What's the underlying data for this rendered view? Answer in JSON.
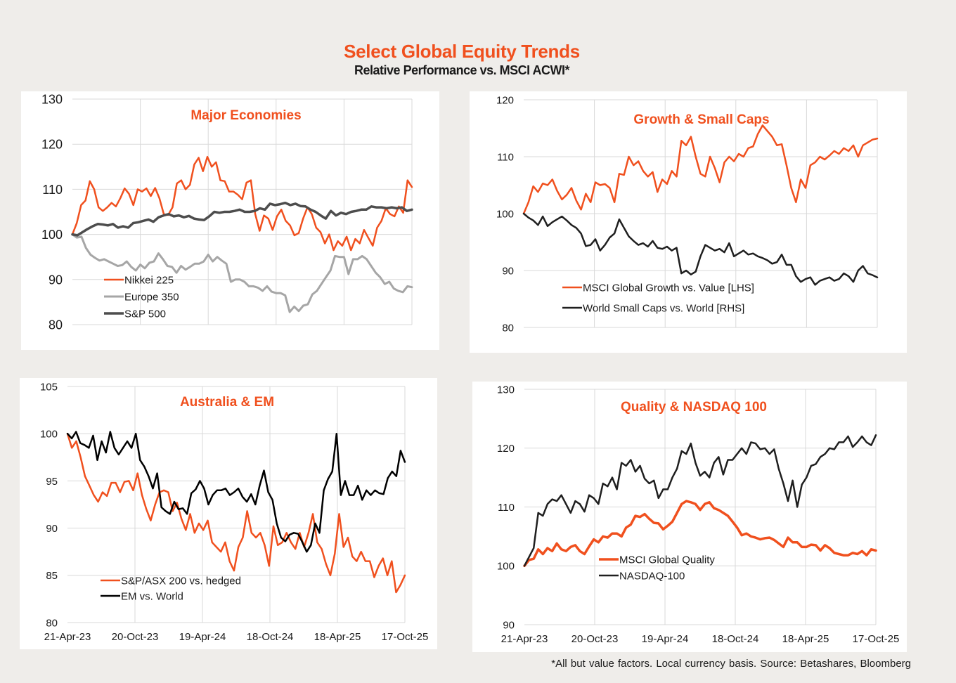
{
  "header": {
    "title": "Select Global Equity Trends",
    "subtitle": "Relative Performance vs. MSCI ACWI*"
  },
  "footnote": "*All but value factors. Local currency basis.  Source: Betashares, Bloomberg",
  "colors": {
    "accent": "#f0501e",
    "background": "#efedea",
    "panel": "#ffffff",
    "grid": "#d9d9d9",
    "text": "#1a1a1a"
  },
  "chart_data": [
    {
      "type": "line",
      "title": "Major Economies",
      "xlabel": "",
      "ylabel": "",
      "ylim": [
        80,
        130
      ],
      "yticks": [
        80,
        90,
        100,
        110,
        120,
        130
      ],
      "x_range": [
        "21-Apr-23",
        "17-Oct-25"
      ],
      "xticks": [],
      "x_gridlines": [
        "20-Oct-23",
        "19-Apr-24",
        "18-Oct-24",
        "18-Apr-25"
      ],
      "grid": true,
      "legend_position": "bottom-left",
      "series": [
        {
          "name": "Nikkei 225",
          "color": "#f0501e",
          "width": 2.5,
          "values": [
            100,
            102.5,
            106.5,
            107.5,
            111.8,
            110,
            106,
            105.2,
            106,
            107,
            106.2,
            108,
            110.2,
            109,
            106.5,
            110,
            109.5,
            110.2,
            108.5,
            110.3,
            108,
            104.5,
            104.3,
            106,
            111.3,
            112,
            110,
            111,
            115.5,
            117,
            114,
            117.2,
            115,
            116,
            112,
            111.8,
            109.5,
            109.5,
            108.8,
            107.8,
            111.5,
            112,
            104.5,
            100.8,
            104.2,
            103.5,
            101,
            104,
            105.5,
            103,
            102,
            99.8,
            100.3,
            103.5,
            106,
            104.5,
            101.5,
            100.5,
            98,
            100,
            96.5,
            98.5,
            97.5,
            99.5,
            96.5,
            99,
            98,
            101,
            99.2,
            97.5,
            101.5,
            103,
            105.8,
            104.5,
            104,
            106.2,
            104.8,
            112,
            110.5
          ]
        },
        {
          "name": "Europe 350",
          "color": "#a6a6a6",
          "width": 3,
          "values": [
            100,
            99.3,
            99.5,
            97,
            95.5,
            94.8,
            94.2,
            94.5,
            94,
            93.5,
            93,
            93.2,
            94,
            92.8,
            92,
            93.3,
            92.5,
            93.7,
            94,
            95.8,
            94.5,
            93,
            92.8,
            91.5,
            93,
            92.2,
            92.8,
            93.5,
            93.5,
            94,
            95.5,
            94,
            95,
            94.2,
            93.5,
            89.5,
            90,
            90,
            89.5,
            88.5,
            88.5,
            88.2,
            87.5,
            88.5,
            87.3,
            87,
            87,
            86.5,
            82.8,
            84,
            83,
            84.2,
            84.5,
            86.7,
            87.5,
            89,
            90.5,
            92,
            95.2,
            95,
            95,
            91.2,
            94.5,
            94.5,
            95.2,
            94.5,
            93,
            91.5,
            90.5,
            89,
            89.5,
            88,
            87.5,
            87.2,
            88.5,
            88.3
          ]
        },
        {
          "name": "S&P 500",
          "color": "#4d4d4d",
          "width": 3.5,
          "values": [
            100,
            99.8,
            100.5,
            101.2,
            101.8,
            102.3,
            102.2,
            102,
            102.3,
            101.5,
            101.8,
            101.5,
            102.5,
            102.7,
            103,
            103.3,
            102.8,
            103.8,
            104.2,
            104.5,
            104,
            104.2,
            103.8,
            104.1,
            103.5,
            103.3,
            103.2,
            104,
            105,
            104.8,
            105,
            105,
            105.2,
            105.5,
            105,
            105,
            105.2,
            105.8,
            105.5,
            106.8,
            106.5,
            106.7,
            107,
            106.5,
            106.8,
            106.3,
            106.2,
            105.5,
            105,
            104.2,
            103.5,
            105.2,
            104.2,
            104.8,
            104.5,
            105,
            105.2,
            105.5,
            105.5,
            106.2,
            106,
            106,
            105.8,
            106,
            105.8,
            106,
            105.2,
            105.5
          ]
        }
      ]
    },
    {
      "type": "line",
      "title": "Growth & Small Caps",
      "xlabel": "",
      "ylabel": "",
      "ylim": [
        80,
        120
      ],
      "yticks": [
        80,
        90,
        100,
        110,
        120
      ],
      "x_range": [
        "21-Apr-23",
        "17-Oct-25"
      ],
      "xticks": [],
      "x_gridlines": [
        "20-Oct-23",
        "19-Apr-24",
        "18-Oct-24",
        "18-Apr-25"
      ],
      "grid": true,
      "legend_position": "bottom-left",
      "series": [
        {
          "name": "MSCI Global Growth vs. Value [LHS]",
          "color": "#f0501e",
          "width": 2.5,
          "values": [
            100,
            102,
            104.8,
            103.8,
            105.3,
            105,
            106,
            104,
            102.5,
            103.3,
            104.5,
            102.3,
            100.7,
            103.5,
            102,
            105.5,
            105,
            105.2,
            104.5,
            102,
            107,
            106.8,
            110,
            108.5,
            109.2,
            107.5,
            106.5,
            107.3,
            103.8,
            106,
            105.2,
            107.5,
            106.5,
            112.8,
            112,
            113.5,
            110,
            107,
            106.5,
            110,
            108,
            105.5,
            109,
            110,
            109.2,
            110.5,
            110,
            111.5,
            111.8,
            114,
            115.5,
            114.5,
            113.5,
            112,
            112.2,
            108.5,
            104.5,
            102,
            106,
            104.5,
            108.5,
            109,
            110,
            109.5,
            110.2,
            111,
            110.5,
            111.5,
            111,
            112,
            110,
            112,
            112.5,
            113,
            113.2
          ]
        },
        {
          "name": "World Small Caps vs. World [RHS]",
          "color": "#1f1f1f",
          "width": 2.5,
          "values": [
            100,
            99.3,
            98.8,
            98,
            99.5,
            97.8,
            98.5,
            99,
            99.5,
            98.8,
            98,
            97.5,
            96.5,
            94.3,
            94.5,
            95.5,
            93.5,
            94.5,
            95.8,
            96.5,
            99,
            97.5,
            96,
            95.2,
            94.5,
            94.8,
            94.2,
            95.2,
            94,
            93.8,
            94.2,
            93.5,
            94,
            89.5,
            90,
            89.3,
            89.8,
            92.5,
            94.5,
            94,
            93.5,
            93.8,
            93.2,
            94.8,
            92.5,
            93,
            93.5,
            92.8,
            93,
            92.5,
            92.2,
            91.8,
            91.2,
            91.5,
            92.8,
            91,
            91,
            89,
            88,
            88.5,
            88.8,
            87.5,
            88.2,
            88.5,
            88.8,
            88.2,
            88.5,
            89.5,
            89,
            88,
            90,
            90.8,
            89.5,
            89.2,
            88.8
          ]
        }
      ]
    },
    {
      "type": "line",
      "title": "Australia & EM",
      "xlabel": "",
      "ylabel": "",
      "ylim": [
        80,
        105
      ],
      "yticks": [
        80,
        85,
        90,
        95,
        100,
        105
      ],
      "x_range": [
        "21-Apr-23",
        "17-Oct-25"
      ],
      "xticks": [
        "21-Apr-23",
        "20-Oct-23",
        "19-Apr-24",
        "18-Oct-24",
        "18-Apr-25",
        "17-Oct-25"
      ],
      "grid": true,
      "legend_position": "bottom-left",
      "series": [
        {
          "name": "S&P/ASX 200 vs. hedged",
          "color": "#f0501e",
          "width": 2.5,
          "values": [
            100,
            98.5,
            99.2,
            97.5,
            95.5,
            94.5,
            93.5,
            92.8,
            93.8,
            93.4,
            94.8,
            94.8,
            93.8,
            94.9,
            95,
            94,
            95.8,
            93.5,
            92,
            90.8,
            92.5,
            93.8,
            94,
            93.8,
            91.8,
            92.7,
            91,
            89.8,
            91.5,
            89.5,
            90.5,
            89.8,
            90.8,
            88.5,
            88,
            87.5,
            88.5,
            86.5,
            85.5,
            88,
            89,
            91.8,
            89.5,
            89,
            89.5,
            88.2,
            86,
            90.2,
            88.2,
            88.5,
            89.5,
            88.5,
            87.8,
            89.5,
            88,
            89.5,
            91.5,
            88.5,
            87.8,
            86.2,
            85,
            87.3,
            91.5,
            88,
            89,
            87,
            86.5,
            87.5,
            86.5,
            86.5,
            84.8,
            86,
            86.8,
            85,
            86.5,
            83.2,
            84,
            85
          ]
        },
        {
          "name": "EM vs. World",
          "color": "#000000",
          "width": 2.5,
          "values": [
            100,
            99.5,
            100.2,
            99,
            98.8,
            98.5,
            99.8,
            97.2,
            99.2,
            98,
            100.2,
            98.5,
            97.8,
            98.5,
            99.2,
            98.5,
            100,
            97.2,
            96.5,
            95.5,
            94.2,
            95.8,
            92.2,
            91.8,
            91.5,
            92.8,
            92,
            92.1,
            91.5,
            93.7,
            94.1,
            95,
            94.2,
            92.5,
            93.5,
            94,
            94,
            94.2,
            93.5,
            93.8,
            94.2,
            93.3,
            92.8,
            93.6,
            92.5,
            94.5,
            96.1,
            93.8,
            93,
            90.5,
            89,
            88.6,
            89.3,
            89.5,
            89.4,
            88.5,
            87.5,
            88.2,
            90.5,
            89.5,
            94,
            95.2,
            96,
            100,
            93.5,
            95,
            93.5,
            93.5,
            94.5,
            93,
            94,
            93.5,
            94,
            93.7,
            93.6,
            95.3,
            96,
            95.5,
            98.2,
            97
          ]
        }
      ]
    },
    {
      "type": "line",
      "title": "Quality & NASDAQ 100",
      "xlabel": "",
      "ylabel": "",
      "ylim": [
        90,
        130
      ],
      "yticks": [
        90,
        100,
        110,
        120,
        130
      ],
      "x_range": [
        "21-Apr-23",
        "17-Oct-25"
      ],
      "xticks": [
        "21-Apr-23",
        "20-Oct-23",
        "19-Apr-24",
        "18-Oct-24",
        "18-Apr-25",
        "17-Oct-25"
      ],
      "grid": true,
      "legend_position": "center-left",
      "series": [
        {
          "name": "MSCI Global Quality",
          "color": "#f0501e",
          "width": 3.5,
          "values": [
            100,
            101,
            101.2,
            102.8,
            102,
            103,
            102.5,
            103.8,
            102.8,
            102.5,
            103.2,
            103.5,
            102.5,
            102,
            103.3,
            104.5,
            104,
            105,
            104.8,
            105.5,
            105.5,
            105,
            106.5,
            107,
            108.5,
            108.3,
            108.8,
            108,
            107.3,
            107.2,
            106.2,
            106.8,
            107.5,
            109,
            110.5,
            111,
            110.8,
            110.5,
            109.5,
            110.5,
            110.8,
            109.8,
            109.5,
            109,
            108.5,
            107.5,
            106.5,
            105.2,
            105.5,
            105,
            104.8,
            104.5,
            104.7,
            104.8,
            104.4,
            103.8,
            103.2,
            104.8,
            104,
            104,
            103.2,
            103.2,
            103.6,
            103.5,
            102.6,
            103.5,
            103,
            102.2,
            102,
            101.8,
            101.8,
            102.2,
            102,
            102.5,
            101.8,
            102.8,
            102.6
          ]
        },
        {
          "name": "NASDAQ-100",
          "color": "#1f1f1f",
          "width": 2.5,
          "values": [
            100,
            101.5,
            103,
            109,
            108.5,
            110.5,
            111.3,
            111,
            112,
            110.5,
            109,
            111,
            110.5,
            109.2,
            112,
            111.5,
            110.5,
            114,
            113.5,
            115,
            113,
            117.5,
            117,
            118,
            116,
            117,
            114.8,
            114,
            114.5,
            111.5,
            113,
            113,
            115,
            116.5,
            119.5,
            119,
            120.8,
            117.5,
            115.3,
            116,
            115,
            117.5,
            118.5,
            115.5,
            118,
            118,
            119,
            120,
            119,
            121,
            120.8,
            119.8,
            120,
            119,
            119.8,
            116.5,
            114,
            111,
            114.5,
            110,
            113.8,
            115,
            117,
            117.3,
            118.5,
            119,
            120,
            119.8,
            121,
            121,
            122,
            120.2,
            121,
            122,
            121,
            120.5,
            122.2
          ]
        }
      ]
    }
  ]
}
